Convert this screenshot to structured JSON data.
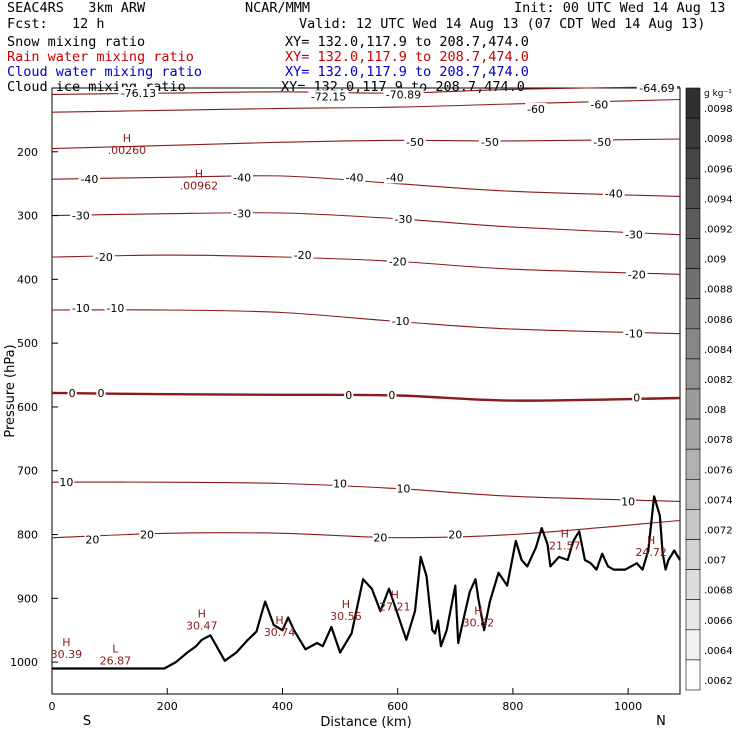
{
  "header": {
    "model": "SEAC4RS   3km ARW",
    "center": "NCAR/MMM",
    "init": "Init: 00 UTC Wed 14 Aug 13",
    "fcst": "Fcst:   12 h",
    "valid": "Valid: 12 UTC Wed 14 Aug 13 (07 CDT Wed 14 Aug 13)"
  },
  "legend": [
    {
      "name": "Snow mixing ratio",
      "xy": "XY= 132.0,117.9 to 208.7,474.0",
      "color": "#000000"
    },
    {
      "name": "Rain water mixing ratio",
      "xy": "XY= 132.0,117.9 to 208.7,474.0",
      "color": "#cc0000"
    },
    {
      "name": "Cloud water mixing ratio",
      "xy": "XY= 132.0,117.9 to 208.7,474.0",
      "color": "#0000cc"
    },
    {
      "name": "Cloud ice mixing ratio",
      "xy": "XY= 132.0,117.9 to 208.7,474.0",
      "color": "#000000"
    }
  ],
  "colorbar": {
    "unit": "g kg⁻¹",
    "ticks": [
      ".0098",
      ".0098",
      ".0096",
      ".0094",
      ".0092",
      ".009",
      ".0088",
      ".0086",
      ".0084",
      ".0082",
      ".008",
      ".0078",
      ".0076",
      ".0074",
      ".0072",
      ".007",
      ".0068",
      ".0066",
      ".0064",
      ".0062"
    ]
  },
  "chart_data": {
    "type": "contour cross-section",
    "xlabel": "Distance (km)",
    "ylabel": "Pressure (hPa)",
    "xlim": [
      0,
      1090
    ],
    "ylim": [
      1050,
      100
    ],
    "xticks": [
      "0",
      "200",
      "400",
      "600",
      "800",
      "1000"
    ],
    "yticks": [
      "200",
      "300",
      "400",
      "500",
      "600",
      "700",
      "800",
      "900",
      "1000"
    ],
    "yticks_values": [
      200,
      300,
      400,
      500,
      600,
      700,
      800,
      900,
      1000
    ],
    "xticks_values": [
      0,
      200,
      400,
      600,
      800,
      1000
    ],
    "ends": {
      "left": "S",
      "right": "N"
    },
    "colors": {
      "contour": "#8b1a1a",
      "terrain": "#000000"
    },
    "temperature_contours": [
      {
        "value": -70,
        "x": [
          0,
          200,
          400,
          600,
          800,
          1090
        ],
        "y": [
          110,
          108,
          106,
          108,
          102,
          98
        ]
      },
      {
        "value": -60,
        "x": [
          0,
          200,
          400,
          600,
          800,
          1090
        ],
        "y": [
          138,
          135,
          132,
          130,
          125,
          118
        ]
      },
      {
        "value": -50,
        "x": [
          0,
          200,
          400,
          600,
          800,
          1090
        ],
        "y": [
          195,
          190,
          185,
          182,
          183,
          180
        ]
      },
      {
        "value": -40,
        "x": [
          0,
          200,
          400,
          600,
          800,
          1090
        ],
        "y": [
          243,
          240,
          238,
          250,
          262,
          270
        ]
      },
      {
        "value": -30,
        "x": [
          0,
          200,
          400,
          600,
          800,
          1090
        ],
        "y": [
          300,
          297,
          296,
          305,
          318,
          330
        ]
      },
      {
        "value": -20,
        "x": [
          0,
          200,
          400,
          600,
          800,
          1090
        ],
        "y": [
          365,
          362,
          365,
          372,
          384,
          392
        ]
      },
      {
        "value": -10,
        "x": [
          0,
          200,
          400,
          600,
          800,
          1090
        ],
        "y": [
          448,
          448,
          452,
          466,
          478,
          485
        ]
      },
      {
        "value": 0,
        "x": [
          0,
          200,
          400,
          600,
          800,
          1090
        ],
        "y": [
          578,
          580,
          581,
          582,
          590,
          586
        ]
      },
      {
        "value": 10,
        "x": [
          0,
          200,
          400,
          600,
          800,
          1090
        ],
        "y": [
          718,
          718,
          720,
          728,
          740,
          748
        ]
      },
      {
        "value": 20,
        "x": [
          0,
          200,
          400,
          600,
          800,
          1090
        ],
        "y": [
          805,
          798,
          798,
          805,
          800,
          778
        ]
      }
    ],
    "contour_labels": [
      {
        "text": "-76.13",
        "x": 150,
        "y": 108
      },
      {
        "text": "-72.15",
        "x": 480,
        "y": 113
      },
      {
        "text": "-70.89",
        "x": 610,
        "y": 110
      },
      {
        "text": "-64.69",
        "x": 1050,
        "y": 100
      },
      {
        "text": "-60",
        "x": 840,
        "y": 133
      },
      {
        "text": "-60",
        "x": 950,
        "y": 126
      },
      {
        "text": "-50",
        "x": 630,
        "y": 185
      },
      {
        "text": "-50",
        "x": 760,
        "y": 185
      },
      {
        "text": "-50",
        "x": 955,
        "y": 185
      },
      {
        "text": "-40",
        "x": 65,
        "y": 243
      },
      {
        "text": "-40",
        "x": 330,
        "y": 240
      },
      {
        "text": "-40",
        "x": 525,
        "y": 240
      },
      {
        "text": "-40",
        "x": 595,
        "y": 240
      },
      {
        "text": "-40",
        "x": 975,
        "y": 265
      },
      {
        "text": "-30",
        "x": 50,
        "y": 300
      },
      {
        "text": "-30",
        "x": 330,
        "y": 297
      },
      {
        "text": "-30",
        "x": 610,
        "y": 305
      },
      {
        "text": "-30",
        "x": 1010,
        "y": 330
      },
      {
        "text": "-20",
        "x": 90,
        "y": 365
      },
      {
        "text": "-20",
        "x": 435,
        "y": 362
      },
      {
        "text": "-20",
        "x": 600,
        "y": 372
      },
      {
        "text": "-20",
        "x": 1015,
        "y": 392
      },
      {
        "text": "-10",
        "x": 50,
        "y": 445
      },
      {
        "text": "-10",
        "x": 110,
        "y": 445
      },
      {
        "text": "-10",
        "x": 605,
        "y": 465
      },
      {
        "text": "-10",
        "x": 1010,
        "y": 485
      },
      {
        "text": "0",
        "x": 35,
        "y": 578
      },
      {
        "text": "0",
        "x": 85,
        "y": 578
      },
      {
        "text": "0",
        "x": 515,
        "y": 581
      },
      {
        "text": "0",
        "x": 590,
        "y": 581
      },
      {
        "text": "0",
        "x": 1015,
        "y": 585
      },
      {
        "text": "10",
        "x": 25,
        "y": 718
      },
      {
        "text": "10",
        "x": 500,
        "y": 720
      },
      {
        "text": "10",
        "x": 610,
        "y": 728
      },
      {
        "text": "10",
        "x": 1000,
        "y": 748
      },
      {
        "text": "20",
        "x": 70,
        "y": 808
      },
      {
        "text": "20",
        "x": 165,
        "y": 800
      },
      {
        "text": "20",
        "x": 570,
        "y": 805
      },
      {
        "text": "20",
        "x": 700,
        "y": 800
      }
    ],
    "extrema": [
      {
        "type": "H",
        "value": ".00260",
        "x": 130,
        "y": 185
      },
      {
        "type": "H",
        "value": ".00962",
        "x": 255,
        "y": 240
      },
      {
        "type": "H",
        "value": "30.39",
        "x": 25,
        "y": 975
      },
      {
        "type": "L",
        "value": "26.87",
        "x": 110,
        "y": 985
      },
      {
        "type": "H",
        "value": "30.47",
        "x": 260,
        "y": 930
      },
      {
        "type": "H",
        "value": "30.74",
        "x": 395,
        "y": 940
      },
      {
        "type": "H",
        "value": "30.56",
        "x": 510,
        "y": 915
      },
      {
        "type": "H",
        "value": "27.21",
        "x": 595,
        "y": 900
      },
      {
        "type": "H",
        "value": "30.82",
        "x": 740,
        "y": 925
      },
      {
        "type": "H",
        "value": "21.57",
        "x": 890,
        "y": 805
      },
      {
        "type": "H",
        "value": "24.72",
        "x": 1040,
        "y": 815
      }
    ],
    "terrain": {
      "x": [
        0,
        195,
        215,
        235,
        250,
        260,
        275,
        300,
        320,
        340,
        355,
        365,
        370,
        385,
        400,
        410,
        420,
        440,
        460,
        470,
        485,
        500,
        520,
        540,
        555,
        570,
        585,
        600,
        615,
        630,
        640,
        650,
        660,
        665,
        670,
        675,
        685,
        700,
        705,
        715,
        725,
        735,
        740,
        750,
        760,
        775,
        790,
        805,
        815,
        825,
        830,
        840,
        850,
        860,
        865,
        880,
        895,
        905,
        915,
        925,
        935,
        945,
        955,
        965,
        975,
        985,
        995,
        1005,
        1015,
        1025,
        1035,
        1045,
        1055,
        1060,
        1065,
        1070,
        1080,
        1090
      ],
      "y": [
        1010,
        1010,
        1000,
        985,
        975,
        965,
        958,
        998,
        985,
        965,
        952,
        920,
        905,
        942,
        950,
        930,
        950,
        980,
        970,
        975,
        945,
        985,
        955,
        870,
        885,
        920,
        885,
        925,
        965,
        920,
        835,
        865,
        950,
        955,
        935,
        975,
        950,
        880,
        970,
        930,
        890,
        870,
        900,
        950,
        905,
        860,
        880,
        810,
        840,
        850,
        840,
        820,
        790,
        815,
        850,
        835,
        840,
        810,
        795,
        840,
        845,
        855,
        830,
        850,
        855,
        855,
        855,
        850,
        845,
        855,
        825,
        740,
        770,
        830,
        855,
        840,
        825,
        840
      ]
    }
  }
}
